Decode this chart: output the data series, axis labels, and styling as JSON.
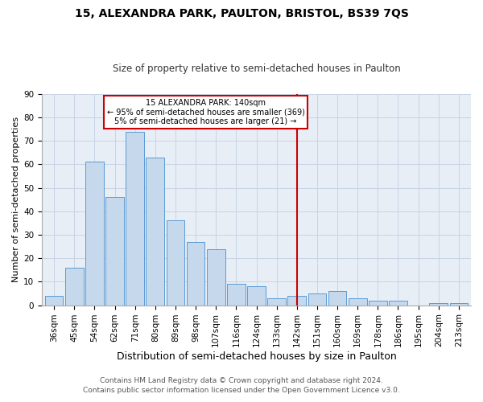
{
  "title": "15, ALEXANDRA PARK, PAULTON, BRISTOL, BS39 7QS",
  "subtitle": "Size of property relative to semi-detached houses in Paulton",
  "xlabel": "Distribution of semi-detached houses by size in Paulton",
  "ylabel": "Number of semi-detached properties",
  "categories": [
    "36sqm",
    "45sqm",
    "54sqm",
    "62sqm",
    "71sqm",
    "80sqm",
    "89sqm",
    "98sqm",
    "107sqm",
    "116sqm",
    "124sqm",
    "133sqm",
    "142sqm",
    "151sqm",
    "160sqm",
    "169sqm",
    "178sqm",
    "186sqm",
    "195sqm",
    "204sqm",
    "213sqm"
  ],
  "values": [
    4,
    16,
    61,
    46,
    74,
    63,
    36,
    27,
    24,
    9,
    8,
    3,
    4,
    5,
    6,
    3,
    2,
    2,
    0,
    1,
    1
  ],
  "bar_color": "#c5d8ec",
  "bar_edge_color": "#5b9bd5",
  "vline_x_index": 12,
  "vline_color": "#cc0000",
  "annotation_title": "15 ALEXANDRA PARK: 140sqm",
  "annotation_line1": "← 95% of semi-detached houses are smaller (369)",
  "annotation_line2": "5% of semi-detached houses are larger (21) →",
  "annotation_box_color": "#ffffff",
  "annotation_box_edge": "#cc0000",
  "ylim": [
    0,
    90
  ],
  "yticks": [
    0,
    10,
    20,
    30,
    40,
    50,
    60,
    70,
    80,
    90
  ],
  "footnote1": "Contains HM Land Registry data © Crown copyright and database right 2024.",
  "footnote2": "Contains public sector information licensed under the Open Government Licence v3.0.",
  "background_color": "#ffffff",
  "plot_bg_color": "#e8eef6",
  "grid_color": "#c8d4e4",
  "title_fontsize": 10,
  "subtitle_fontsize": 8.5,
  "xlabel_fontsize": 9,
  "ylabel_fontsize": 8,
  "tick_fontsize": 7.5,
  "footnote_fontsize": 6.5
}
